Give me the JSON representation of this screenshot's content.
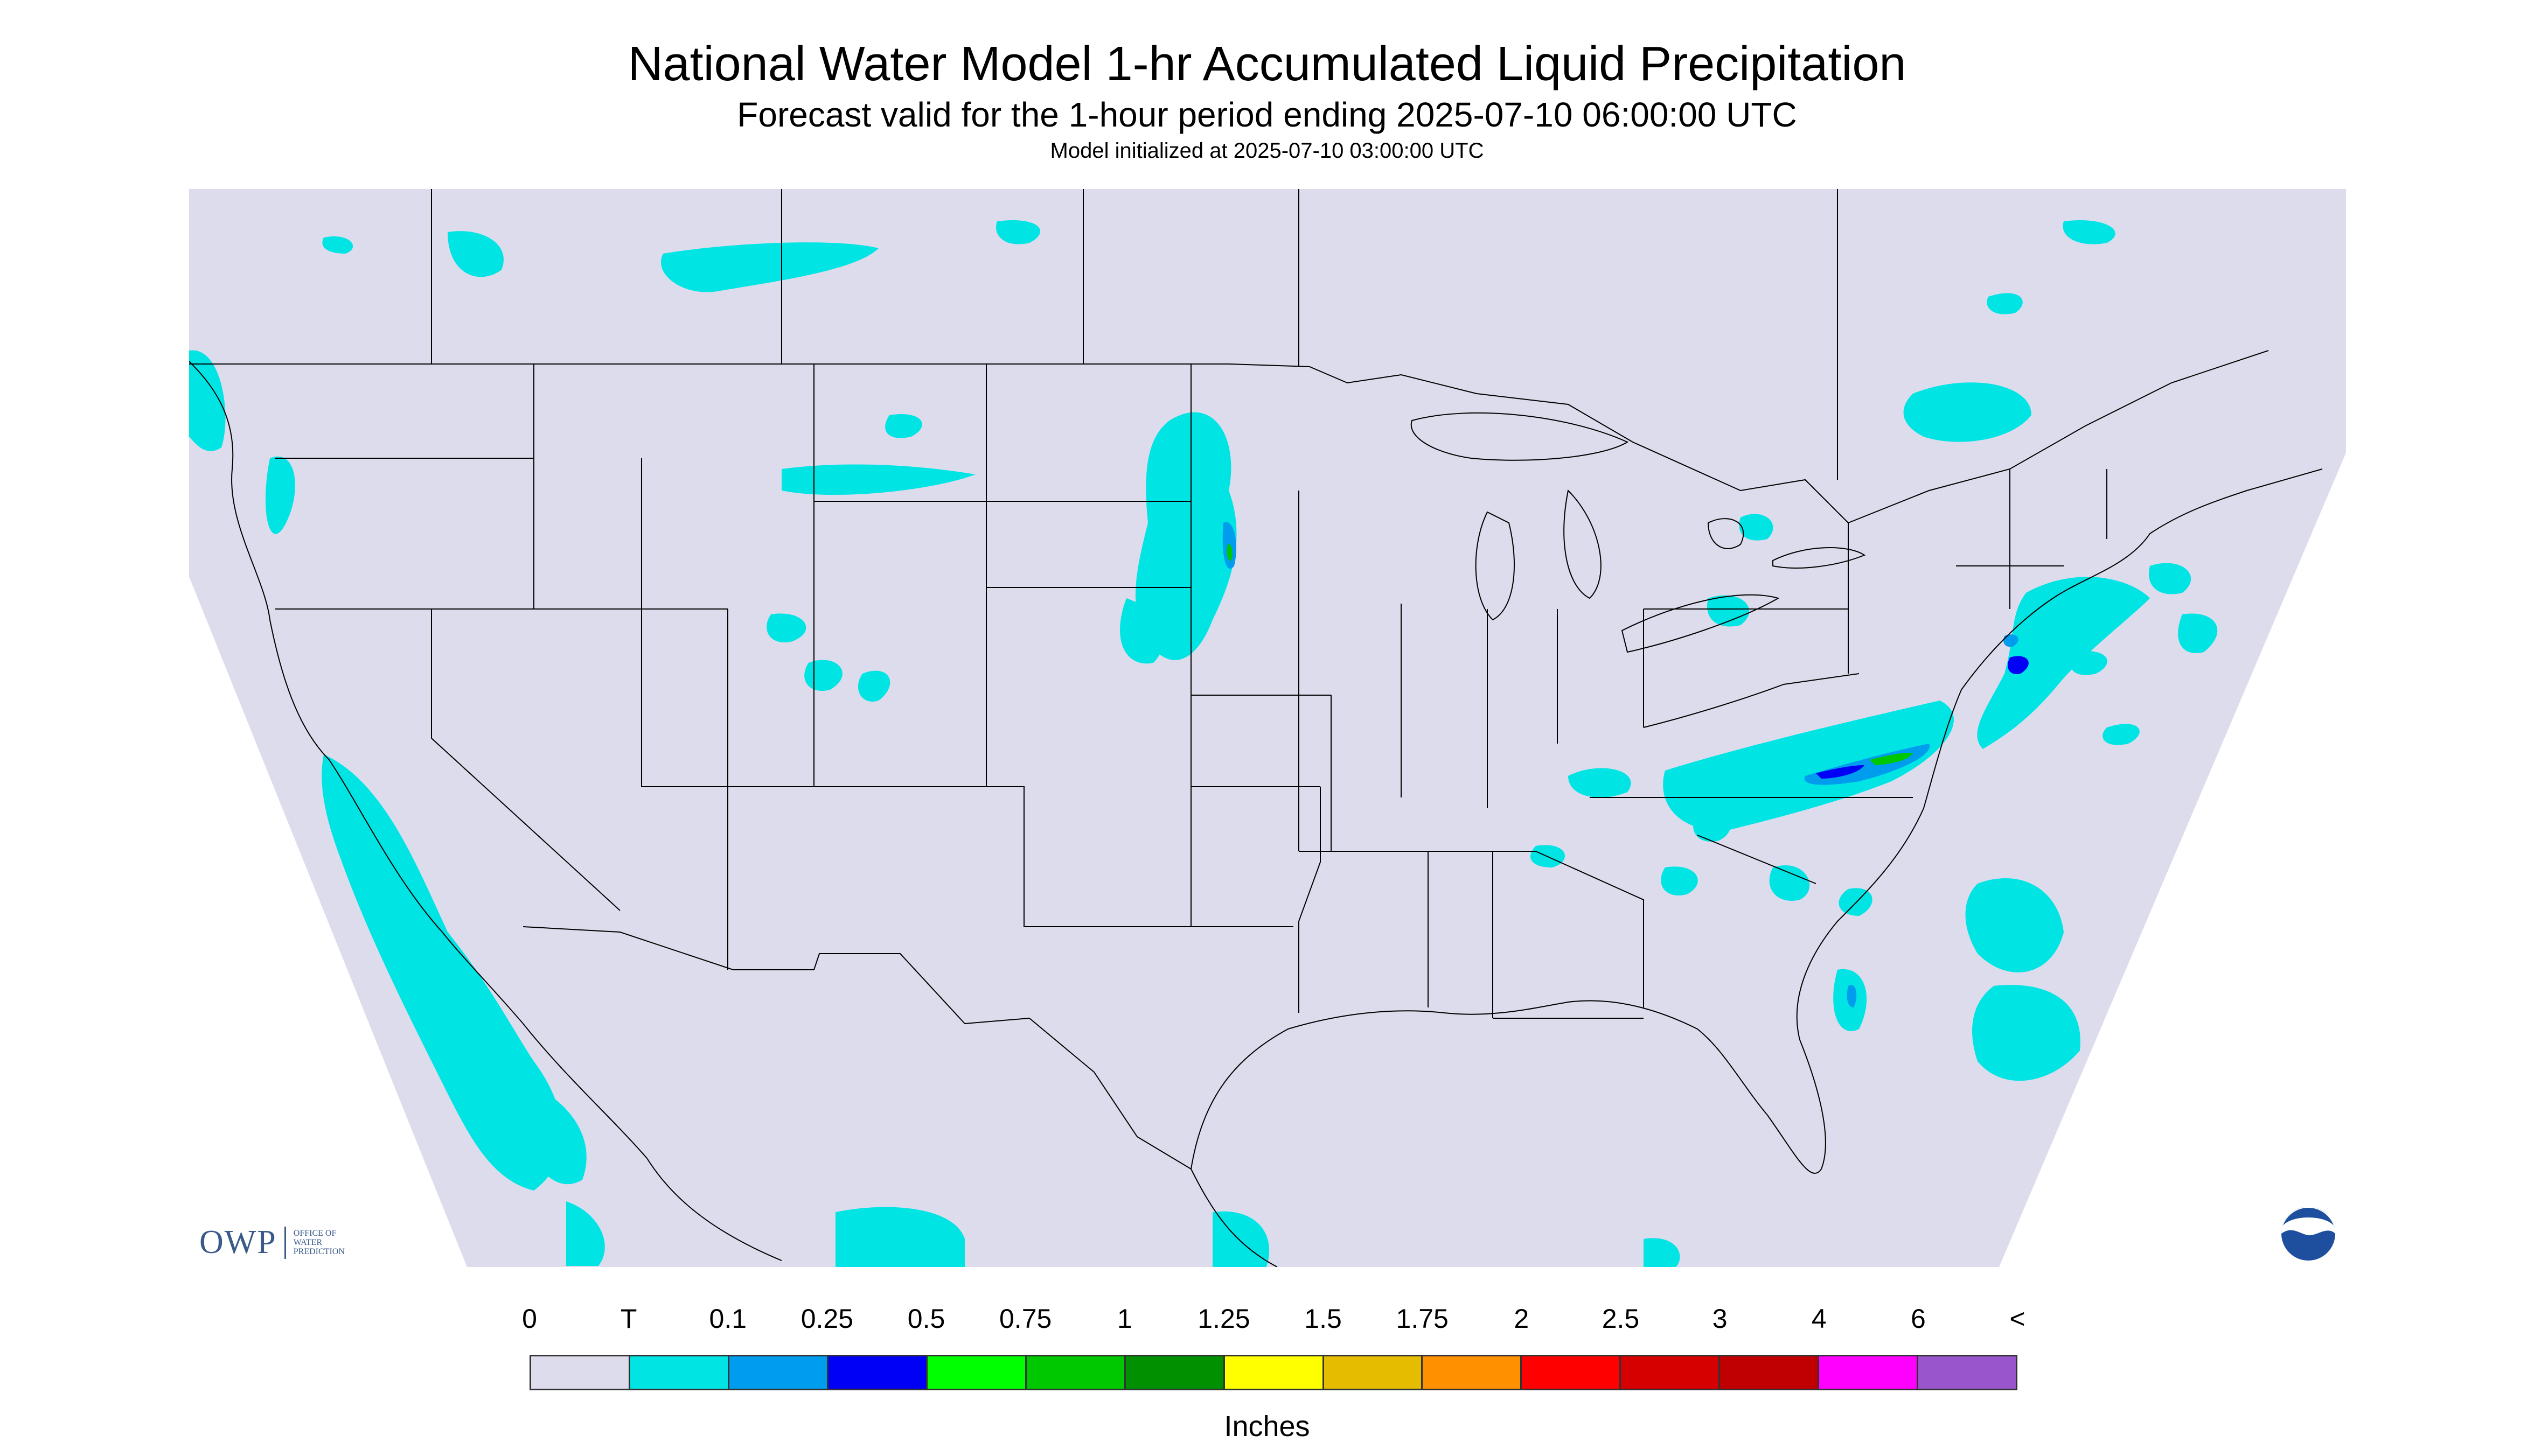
{
  "title": "National Water Model 1-hr Accumulated Liquid Precipitation",
  "subtitle": "Forecast valid for the 1-hour period ending 2025-07-10 06:00:00 UTC",
  "init_text": "Model initialized at 2025-07-10 03:00:00 UTC",
  "legend": {
    "labels": [
      "0",
      "T",
      "0.1",
      "0.25",
      "0.5",
      "0.75",
      "1",
      "1.25",
      "1.5",
      "1.75",
      "2",
      "2.5",
      "3",
      "4",
      "6",
      "<"
    ],
    "colors": [
      "#dcdcec",
      "#00e4e4",
      "#009ced",
      "#0000f6",
      "#00ff00",
      "#00c800",
      "#009000",
      "#ffff00",
      "#e6bc00",
      "#ff9000",
      "#ff0000",
      "#d60000",
      "#c00000",
      "#ff00ff",
      "#9955cc"
    ],
    "units": "Inches"
  },
  "map": {
    "background_color": "#dcdcec",
    "precip_trace_color": "#00e4e4",
    "border_color": "#000000"
  },
  "logos": {
    "owp": {
      "abbr": "OWP",
      "text_lines": [
        "OFFICE OF",
        "WATER",
        "PREDICTION"
      ]
    },
    "noaa": {
      "text": "NOAA",
      "icon": "noaa-logo-icon"
    }
  }
}
